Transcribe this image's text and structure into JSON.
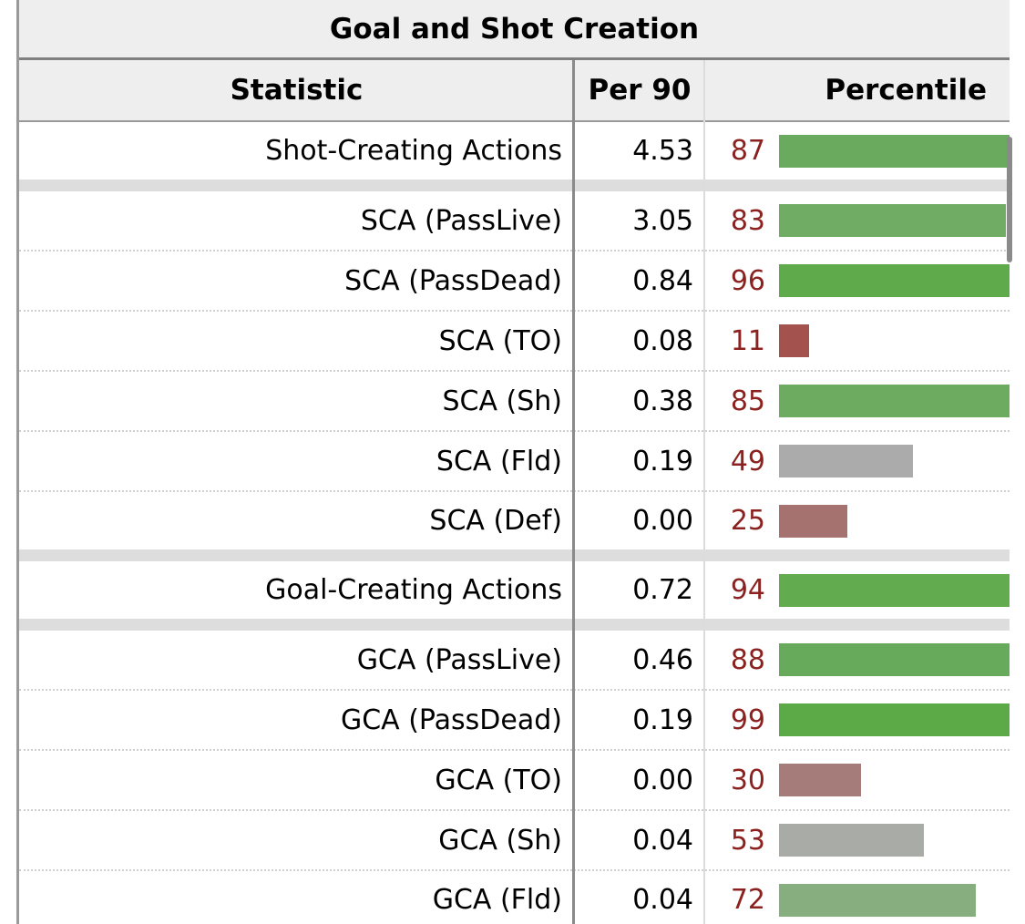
{
  "table": {
    "caption": "Goal and Shot Creation",
    "headers": {
      "statistic": "Statistic",
      "per90": "Per 90",
      "percentile": "Percentile"
    }
  },
  "colors": {
    "accent_number": "#8b2220",
    "separator": "#dddddd",
    "header_bg": "#eeeeee"
  },
  "groups": [
    {
      "rows": [
        {
          "label": "Shot-Creating Actions",
          "per90": "4.53",
          "percentile": "87",
          "percentile_value": 87,
          "bar_color": "#6aaa5e"
        }
      ]
    },
    {
      "rows": [
        {
          "label": "SCA (PassLive)",
          "per90": "3.05",
          "percentile": "83",
          "percentile_value": 83,
          "bar_color": "#70ac64"
        },
        {
          "label": "SCA (PassDead)",
          "per90": "0.84",
          "percentile": "96",
          "percentile_value": 96,
          "bar_color": "#5fab4b"
        },
        {
          "label": "SCA (TO)",
          "per90": "0.08",
          "percentile": "11",
          "percentile_value": 11,
          "bar_color": "#a3524e"
        },
        {
          "label": "SCA (Sh)",
          "per90": "0.38",
          "percentile": "85",
          "percentile_value": 85,
          "bar_color": "#6cab60"
        },
        {
          "label": "SCA (Fld)",
          "per90": "0.19",
          "percentile": "49",
          "percentile_value": 49,
          "bar_color": "#acabab"
        },
        {
          "label": "SCA (Def)",
          "per90": "0.00",
          "percentile": "25",
          "percentile_value": 25,
          "bar_color": "#a6726f"
        }
      ]
    },
    {
      "rows": [
        {
          "label": "Goal-Creating Actions",
          "per90": "0.72",
          "percentile": "94",
          "percentile_value": 94,
          "bar_color": "#62ab4f"
        }
      ]
    },
    {
      "rows": [
        {
          "label": "GCA (PassLive)",
          "per90": "0.46",
          "percentile": "88",
          "percentile_value": 88,
          "bar_color": "#68aa5b"
        },
        {
          "label": "GCA (PassDead)",
          "per90": "0.19",
          "percentile": "99",
          "percentile_value": 99,
          "bar_color": "#5ca948"
        },
        {
          "label": "GCA (TO)",
          "per90": "0.00",
          "percentile": "30",
          "percentile_value": 30,
          "bar_color": "#a67c7b"
        },
        {
          "label": "GCA (Sh)",
          "per90": "0.04",
          "percentile": "53",
          "percentile_value": 53,
          "bar_color": "#a8aba6"
        },
        {
          "label": "GCA (Fld)",
          "per90": "0.04",
          "percentile": "72",
          "percentile_value": 72,
          "bar_color": "#87ae7e"
        }
      ]
    }
  ]
}
